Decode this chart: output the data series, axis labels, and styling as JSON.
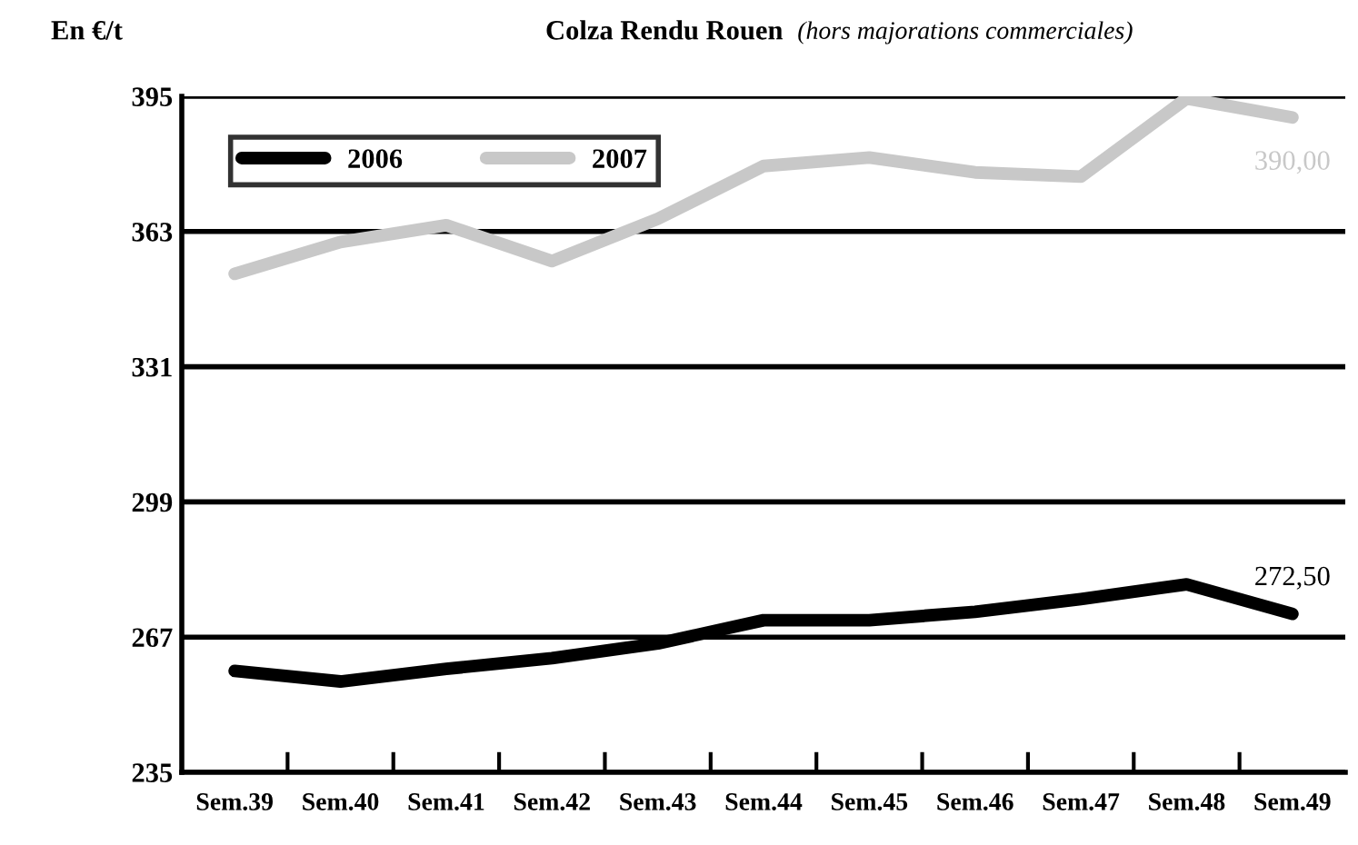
{
  "chart_data": {
    "type": "line",
    "title": "Colza Rendu Rouen",
    "subtitle": "(hors majorations commerciales)",
    "ylabel": "En €/t",
    "categories": [
      "Sem.39",
      "Sem.40",
      "Sem.41",
      "Sem.42",
      "Sem.43",
      "Sem.44",
      "Sem.45",
      "Sem.46",
      "Sem.47",
      "Sem.48",
      "Sem.49"
    ],
    "series": [
      {
        "name": "2006",
        "color": "#000000",
        "values": [
          259,
          256.5,
          259.5,
          262,
          265.5,
          271,
          271,
          273,
          276,
          279.5,
          272.5
        ]
      },
      {
        "name": "2007",
        "color": "#c8c8c8",
        "values": [
          353,
          360.5,
          364.5,
          356,
          366,
          378.5,
          380.5,
          377,
          376,
          394.5,
          390
        ]
      }
    ],
    "ylim": [
      235,
      395
    ],
    "yticks": [
      235,
      267,
      299,
      331,
      363,
      395
    ],
    "grid": "y",
    "legend": "top left",
    "marker": "none",
    "line_style": "solid",
    "annotations": [
      {
        "text": "390,00",
        "x": "Sem.49",
        "y": 390
      },
      {
        "text": "272,50",
        "x": "Sem.49",
        "y": 272.5
      }
    ]
  }
}
